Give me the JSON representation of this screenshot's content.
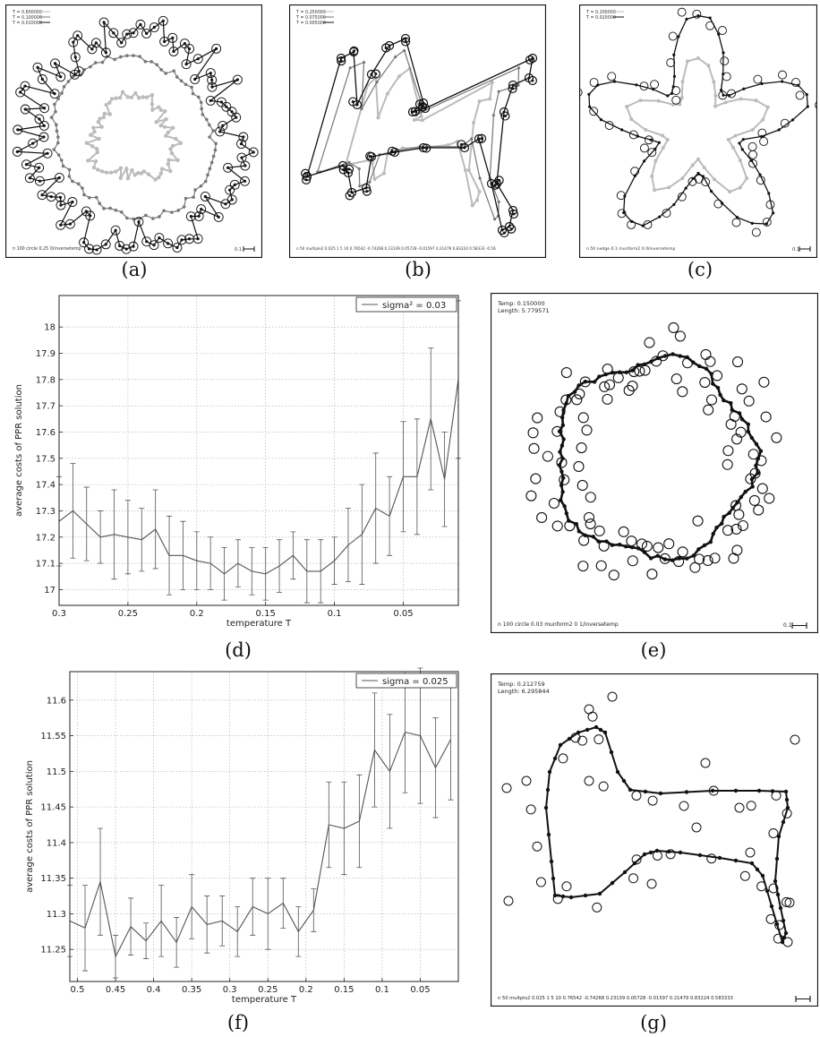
{
  "panels": {
    "a": {
      "caption": "(a)",
      "legend": [
        "T = 0.600000",
        "T = 0.100000",
        "T = 0.010000"
      ],
      "footer": "n 100 circle 0.25 0/inversetemp",
      "scale": "0.1"
    },
    "b": {
      "caption": "(b)",
      "legend": [
        "T = 0.250000",
        "T = 0.075000",
        "T = 0.005000"
      ],
      "footer": "n 50 multiple2 0.025 1 5 10 0.76542 -0.74268 0.23139 0.05728 -0.01597 0.21479 0.83224 0.58333 -0.56"
    },
    "c": {
      "caption": "(c)",
      "legend": [
        "T = 0.200000",
        "T = 0.020000"
      ],
      "footer": "n 50 nedge 0.1 munform2 0 0/inversetemp",
      "scale": "0.1"
    },
    "d": {
      "caption": "(d)"
    },
    "e": {
      "caption": "(e)",
      "temp": "Temp: 0.150000",
      "length": "Length: 5.779571",
      "footer": "n 100 circle 0.03 munform2 0 1/inversetemp",
      "scale": "0.1"
    },
    "f": {
      "caption": "(f)"
    },
    "g": {
      "caption": "(g)",
      "temp": "Temp: 0.212759",
      "length": "Length: 6.295844",
      "footer": "n 50 multpts2 0.025 1 5 10 0.76542 -0.74268 0.23139 0.05728 -0.01597 0.21479 0.83224 0.583333"
    }
  },
  "chart_data": [
    {
      "id": "d",
      "type": "line",
      "xlabel": "temperature T",
      "ylabel": "average costs of PPR solution",
      "legend": "sigma² = 0.03",
      "legend_position": "top-right",
      "x_reversed": true,
      "xlim": [
        0.3,
        0.01
      ],
      "ylim": [
        16.94,
        18.12
      ],
      "xticks": [
        0.3,
        0.25,
        0.2,
        0.15,
        0.1,
        0.05
      ],
      "xtick_labels": [
        "0.3",
        "0.25",
        "0.2",
        "0.15",
        "0.1",
        "0.05"
      ],
      "yticks": [
        17,
        17.1,
        17.2,
        17.3,
        17.4,
        17.5,
        17.6,
        17.7,
        17.8,
        17.9,
        18
      ],
      "ytick_labels": [
        "17",
        "17.1",
        "17.2",
        "17.3",
        "17.4",
        "17.5",
        "17.6",
        "17.7",
        "17.8",
        "17.9",
        "18"
      ],
      "grid": true,
      "x": [
        0.3,
        0.29,
        0.28,
        0.27,
        0.26,
        0.25,
        0.24,
        0.23,
        0.22,
        0.21,
        0.2,
        0.19,
        0.18,
        0.17,
        0.16,
        0.15,
        0.14,
        0.13,
        0.12,
        0.11,
        0.1,
        0.09,
        0.08,
        0.07,
        0.06,
        0.05,
        0.04,
        0.03,
        0.02,
        0.01
      ],
      "y": [
        17.26,
        17.3,
        17.25,
        17.2,
        17.21,
        17.2,
        17.19,
        17.23,
        17.13,
        17.13,
        17.11,
        17.1,
        17.06,
        17.1,
        17.07,
        17.06,
        17.09,
        17.13,
        17.07,
        17.07,
        17.11,
        17.17,
        17.21,
        17.31,
        17.28,
        17.43,
        17.43,
        17.65,
        17.42,
        17.8
      ],
      "err": [
        0.17,
        0.18,
        0.14,
        0.1,
        0.17,
        0.14,
        0.12,
        0.15,
        0.15,
        0.13,
        0.11,
        0.1,
        0.1,
        0.09,
        0.09,
        0.1,
        0.1,
        0.09,
        0.12,
        0.12,
        0.09,
        0.14,
        0.19,
        0.21,
        0.15,
        0.21,
        0.22,
        0.27,
        0.18,
        0.3
      ]
    },
    {
      "id": "f",
      "type": "line",
      "xlabel": "temperature T",
      "ylabel": "average costs of PPR solution",
      "legend": "sigma = 0.025",
      "legend_position": "top-right",
      "x_reversed": true,
      "xlim": [
        0.51,
        0.0
      ],
      "ylim": [
        11.205,
        11.64
      ],
      "xticks": [
        0.5,
        0.45,
        0.4,
        0.35,
        0.3,
        0.25,
        0.2,
        0.15,
        0.1,
        0.05
      ],
      "xtick_labels": [
        "0.5",
        "0.45",
        "0.4",
        "0.35",
        "0.3",
        "0.25",
        "0.2",
        "0.15",
        "0.1",
        "0.05"
      ],
      "yticks": [
        11.25,
        11.3,
        11.35,
        11.4,
        11.45,
        11.5,
        11.55,
        11.6
      ],
      "ytick_labels": [
        "11.25",
        "11.3",
        "11.35",
        "11.4",
        "11.45",
        "11.5",
        "11.55",
        "11.6"
      ],
      "grid": true,
      "x": [
        0.51,
        0.49,
        0.47,
        0.45,
        0.43,
        0.41,
        0.39,
        0.37,
        0.35,
        0.33,
        0.31,
        0.29,
        0.27,
        0.25,
        0.23,
        0.21,
        0.19,
        0.17,
        0.15,
        0.13,
        0.11,
        0.09,
        0.07,
        0.05,
        0.03,
        0.01
      ],
      "y": [
        11.29,
        11.28,
        11.345,
        11.24,
        11.282,
        11.262,
        11.29,
        11.26,
        11.31,
        11.285,
        11.29,
        11.275,
        11.31,
        11.3,
        11.315,
        11.275,
        11.305,
        11.425,
        11.42,
        11.43,
        11.53,
        11.5,
        11.555,
        11.55,
        11.505,
        11.545
      ],
      "err": [
        0.05,
        0.06,
        0.075,
        0.03,
        0.04,
        0.025,
        0.05,
        0.035,
        0.045,
        0.04,
        0.035,
        0.035,
        0.04,
        0.05,
        0.035,
        0.035,
        0.03,
        0.06,
        0.065,
        0.065,
        0.08,
        0.08,
        0.085,
        0.095,
        0.07,
        0.085
      ]
    }
  ]
}
